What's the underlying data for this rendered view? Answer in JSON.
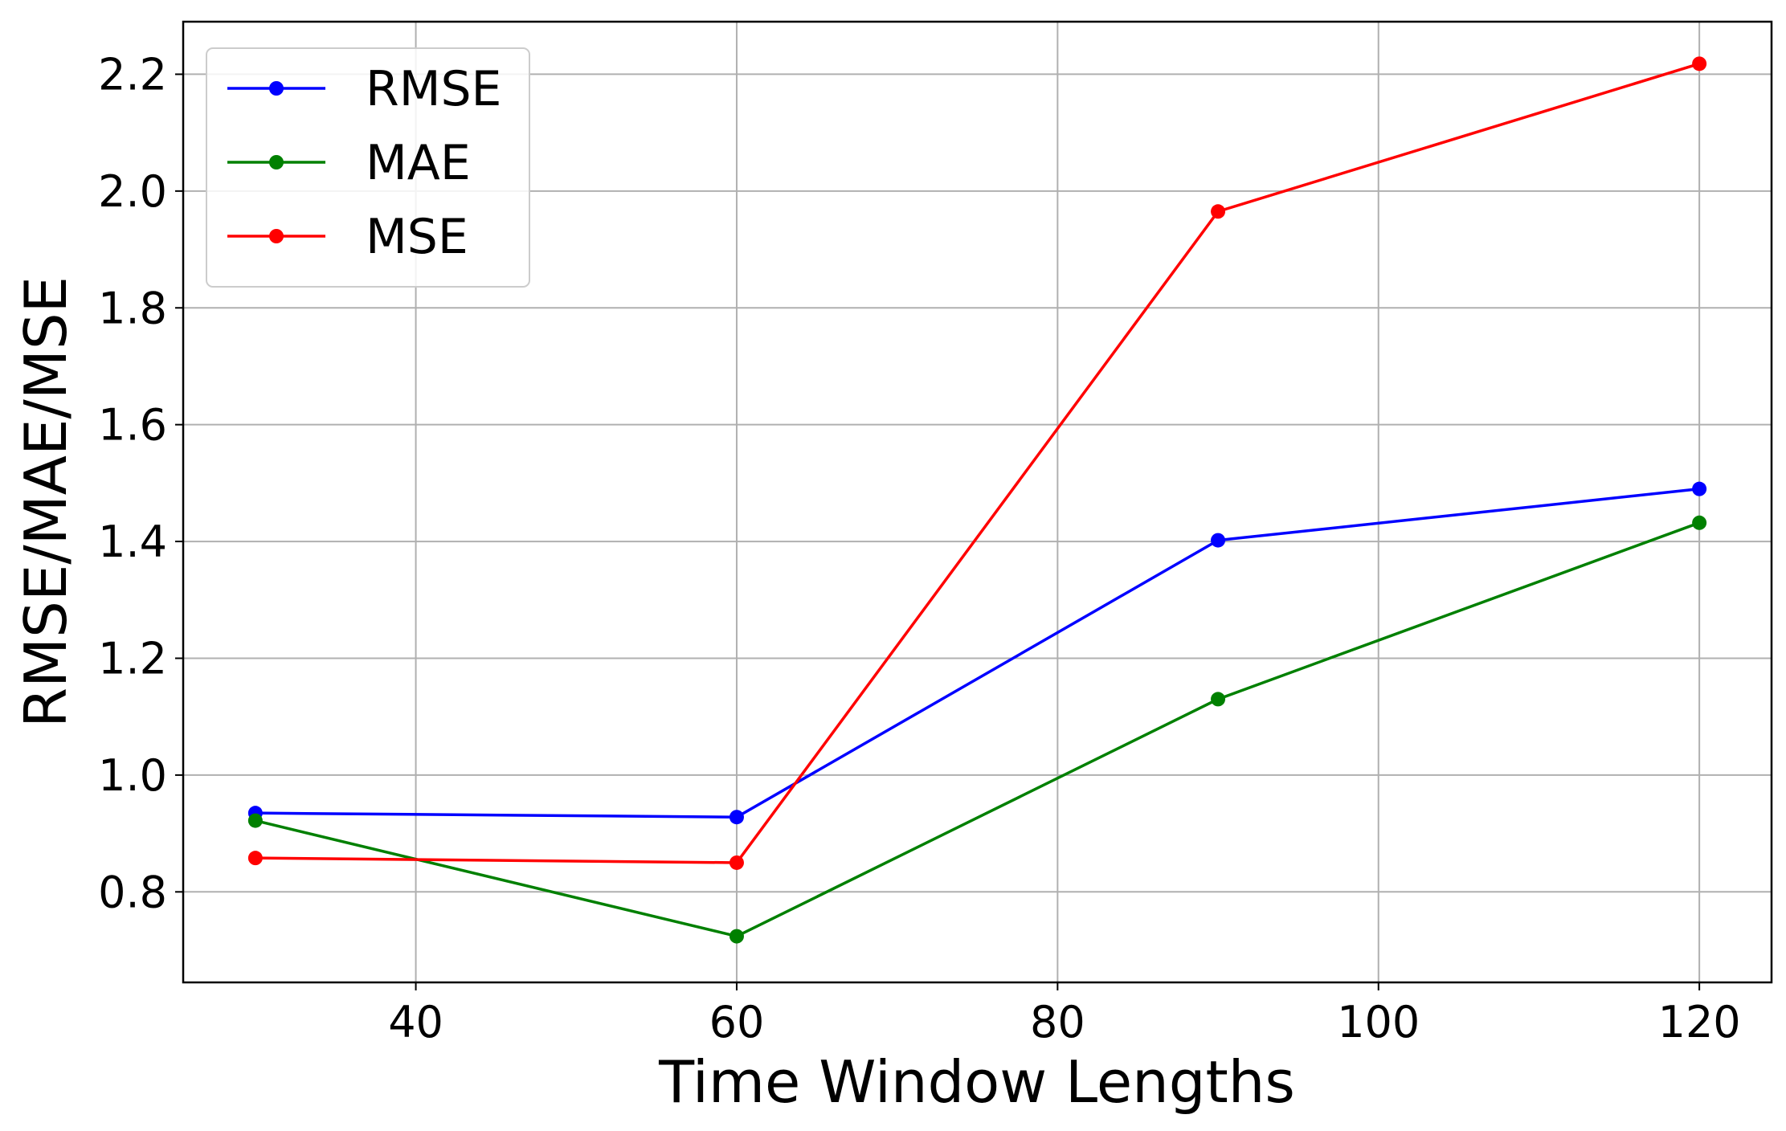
{
  "chart_data": {
    "type": "line",
    "xlabel": "Time Window Lengths",
    "ylabel": "RMSE/MAE/MSE",
    "x": [
      30,
      60,
      90,
      120
    ],
    "xlim": [
      25.5,
      124.5
    ],
    "ylim": [
      0.645,
      2.29
    ],
    "xticks": [
      40,
      60,
      80,
      100,
      120
    ],
    "yticks": [
      0.8,
      1.0,
      1.2,
      1.4,
      1.6,
      1.8,
      2.0,
      2.2
    ],
    "xtick_labels": [
      "40",
      "60",
      "80",
      "100",
      "120"
    ],
    "ytick_labels": [
      "0.8",
      "1.0",
      "1.2",
      "1.4",
      "1.6",
      "1.8",
      "2.0",
      "2.2"
    ],
    "grid": true,
    "legend_position": "top-left",
    "series": [
      {
        "name": "RMSE",
        "color": "#0000ff",
        "values": [
          0.935,
          0.928,
          1.402,
          1.49
        ]
      },
      {
        "name": "MAE",
        "color": "#008000",
        "values": [
          0.922,
          0.724,
          1.13,
          1.432
        ]
      },
      {
        "name": "MSE",
        "color": "#ff0000",
        "values": [
          0.858,
          0.85,
          1.965,
          2.218
        ]
      }
    ]
  }
}
